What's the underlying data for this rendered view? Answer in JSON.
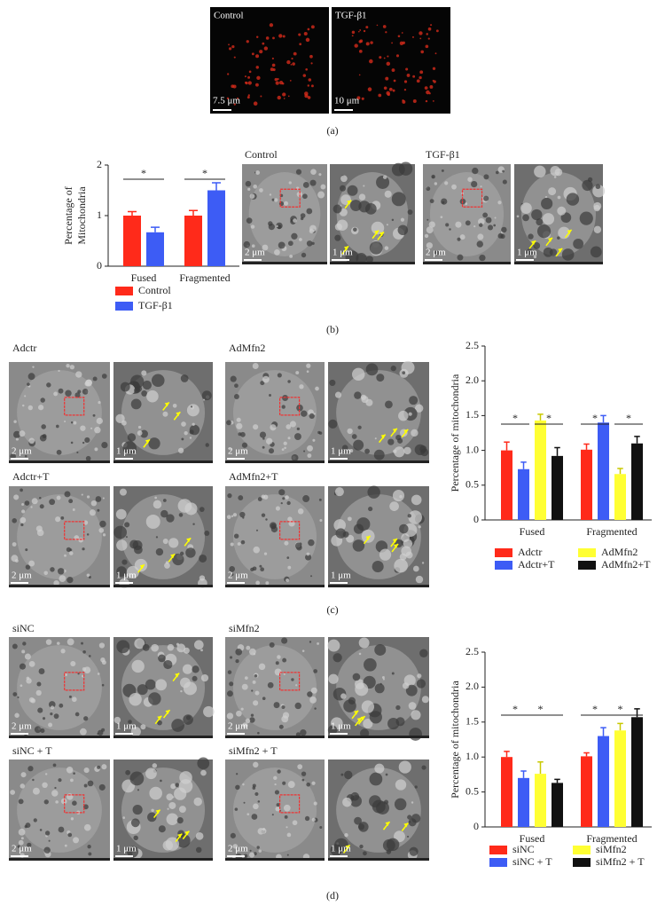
{
  "panel_labels": [
    "(a)",
    "(b)",
    "(c)",
    "(d)"
  ],
  "panel_a": {
    "image_labels": [
      "Control",
      "TGF-β1"
    ],
    "scales": [
      "7.5 μm",
      "10 μm"
    ]
  },
  "panel_b": {
    "image_labels": [
      "Control",
      "TGF-β1"
    ],
    "scales": [
      "2 μm",
      "1 μm",
      "2 μm",
      "1 μm"
    ]
  },
  "panel_c": {
    "image_labels": [
      "Adctr",
      "AdMfn2",
      "Adctr+T",
      "AdMfn2+T"
    ],
    "scales": [
      "2 μm",
      "1 μm",
      "2 μm",
      "1 μm",
      "2 μm",
      "1 μm",
      "2 μm",
      "1 μm"
    ]
  },
  "panel_d": {
    "image_labels": [
      "siNC",
      "siMfn2",
      "siNC + T",
      "siMfn2 + T"
    ],
    "scales": [
      "2 μm",
      "1 μm",
      "2 μm",
      "1 μm",
      "2 μm",
      "1 μm",
      "2 μm",
      "1 μm"
    ]
  },
  "chart_data": [
    {
      "type": "bar",
      "y_label": [
        "Percentage of",
        "Mitochondria"
      ],
      "categories": [
        "Fused",
        "Fragmented"
      ],
      "series": [
        {
          "name": "Control",
          "color": "#ff2a1a",
          "values": [
            1.0,
            1.0
          ],
          "errors": [
            0.08,
            0.1
          ]
        },
        {
          "name": "TGF-β1",
          "color": "#3d5cf5",
          "values": [
            0.67,
            1.5
          ],
          "errors": [
            0.1,
            0.15
          ]
        }
      ],
      "ylim": [
        0,
        2
      ],
      "yticks": [
        0,
        1,
        2
      ],
      "annotations": [
        "*",
        "*"
      ]
    },
    {
      "type": "bar",
      "y_label": "Percentage of mitochondria",
      "categories": [
        "Fused",
        "Fragmented"
      ],
      "series": [
        {
          "name": "Adctr",
          "color": "#ff2a1a",
          "values": [
            1.0,
            1.01
          ],
          "errors": [
            0.12,
            0.08
          ]
        },
        {
          "name": "Adctr+T",
          "color": "#3d5cf5",
          "values": [
            0.73,
            1.4
          ],
          "errors": [
            0.1,
            0.1
          ]
        },
        {
          "name": "AdMfn2",
          "color": "#ffff33",
          "values": [
            1.43,
            0.66
          ],
          "errors": [
            0.09,
            0.08
          ]
        },
        {
          "name": "AdMfn2+T",
          "color": "#111111",
          "values": [
            0.92,
            1.1
          ],
          "errors": [
            0.12,
            0.1
          ]
        }
      ],
      "ylim": [
        0,
        2.5
      ],
      "yticks": [
        0,
        0.5,
        {
          "value": 1,
          "label": "1.0"
        },
        1.5,
        {
          "value": 2,
          "label": "2.0"
        },
        2.5
      ],
      "annotations": [
        "*",
        "*",
        "*",
        "*"
      ]
    },
    {
      "type": "bar",
      "y_label": "Percentage of mitochondria",
      "categories": [
        "Fused",
        "Fragmented"
      ],
      "series": [
        {
          "name": "siNC",
          "color": "#ff2a1a",
          "values": [
            1.0,
            1.01
          ],
          "errors": [
            0.08,
            0.05
          ]
        },
        {
          "name": "siNC + T",
          "color": "#3d5cf5",
          "values": [
            0.7,
            1.3
          ],
          "errors": [
            0.1,
            0.12
          ]
        },
        {
          "name": "siMfn2",
          "color": "#ffff33",
          "values": [
            0.76,
            1.38
          ],
          "errors": [
            0.17,
            0.1
          ]
        },
        {
          "name": "siMfn2 + T",
          "color": "#111111",
          "values": [
            0.63,
            1.57
          ],
          "errors": [
            0.05,
            0.12
          ]
        }
      ],
      "ylim": [
        0,
        2.5
      ],
      "yticks": [
        0,
        0.5,
        {
          "value": 1,
          "label": "1.0"
        },
        1.5,
        {
          "value": 2,
          "label": "2.0"
        },
        2.5
      ],
      "annotations": [
        "*",
        "*",
        "*",
        "*"
      ]
    }
  ]
}
